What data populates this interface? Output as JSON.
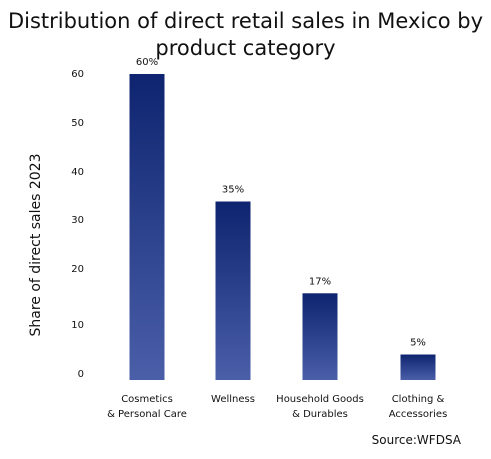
{
  "chart_data": {
    "type": "bar",
    "title_lines": [
      "Distribution of direct retail sales in Mexico by",
      "product category"
    ],
    "ylabel": "Share of direct sales 2023",
    "xlabel": "",
    "categories": [
      [
        "Cosmetics",
        "& Personal Care"
      ],
      [
        "Wellness"
      ],
      [
        "Household Goods",
        "& Durables"
      ],
      [
        "Clothing &",
        "Accessories"
      ]
    ],
    "values": [
      60,
      35,
      17,
      5
    ],
    "data_labels": [
      "60%",
      "35%",
      "17%",
      "5%"
    ],
    "y_ticks": [
      0,
      10,
      20,
      30,
      40,
      50,
      60
    ],
    "ylim": [
      0,
      60
    ],
    "grid": false,
    "legend": "none",
    "bar_color_top": "#0e2470",
    "bar_color_bottom": "#4a5fa8",
    "source": "Source:WFDSA"
  }
}
